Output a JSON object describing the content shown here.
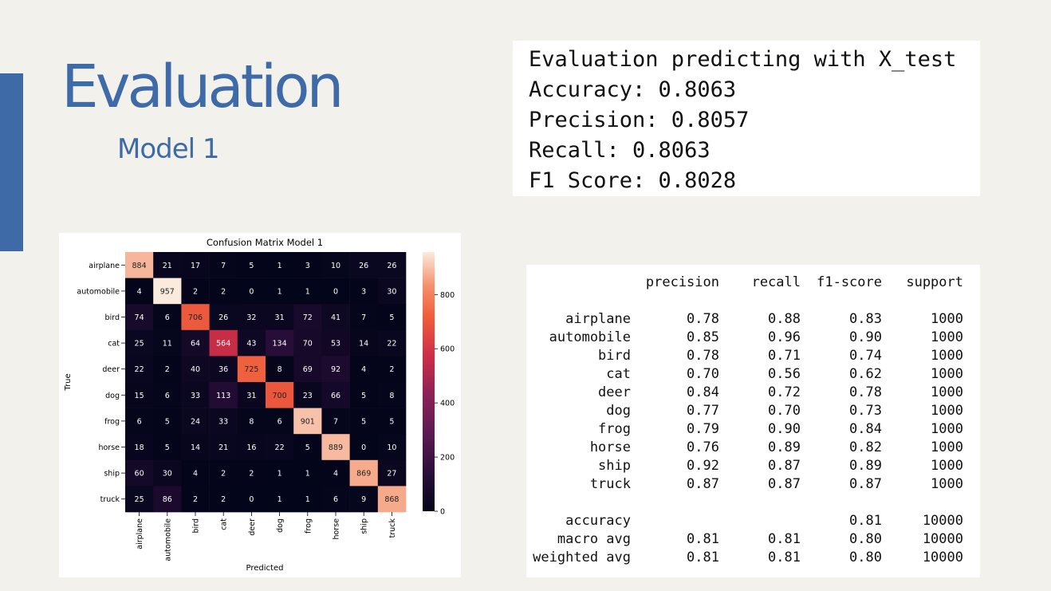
{
  "slide": {
    "title": "Evaluation",
    "subtitle": "Model 1",
    "colors": {
      "accent": "#3e6aa8",
      "background": "#f3f1ec"
    }
  },
  "metrics": {
    "heading": "Evaluation predicting with X_test",
    "lines": [
      "Accuracy: 0.8063",
      "Precision: 0.8057",
      "Recall: 0.8063",
      "F1 Score: 0.8028"
    ]
  },
  "chart_data": {
    "type": "heatmap",
    "title": "Confusion Matrix Model 1",
    "xlabel": "Predicted",
    "ylabel": "True",
    "categories": [
      "airplane",
      "automobile",
      "bird",
      "cat",
      "deer",
      "dog",
      "frog",
      "horse",
      "ship",
      "truck"
    ],
    "matrix": [
      [
        884,
        21,
        17,
        7,
        5,
        1,
        3,
        10,
        26,
        26
      ],
      [
        4,
        957,
        2,
        2,
        0,
        1,
        1,
        0,
        3,
        30
      ],
      [
        74,
        6,
        706,
        26,
        32,
        31,
        72,
        41,
        7,
        5
      ],
      [
        25,
        11,
        64,
        564,
        43,
        134,
        70,
        53,
        14,
        22
      ],
      [
        22,
        2,
        40,
        36,
        725,
        8,
        69,
        92,
        4,
        2
      ],
      [
        15,
        6,
        33,
        113,
        31,
        700,
        23,
        66,
        5,
        8
      ],
      [
        6,
        5,
        24,
        33,
        8,
        6,
        901,
        7,
        5,
        5
      ],
      [
        18,
        5,
        14,
        21,
        16,
        22,
        5,
        889,
        0,
        10
      ],
      [
        60,
        30,
        4,
        2,
        2,
        1,
        1,
        4,
        869,
        27
      ],
      [
        25,
        86,
        2,
        2,
        0,
        1,
        1,
        6,
        9,
        868
      ]
    ],
    "colorbar": {
      "min": 0,
      "max": 957,
      "ticks": [
        "0",
        "200",
        "400",
        "600",
        "800"
      ]
    }
  },
  "report": {
    "headers": [
      "precision",
      "recall",
      "f1-score",
      "support"
    ],
    "rows": [
      [
        "airplane",
        "0.78",
        "0.88",
        "0.83",
        "1000"
      ],
      [
        "automobile",
        "0.85",
        "0.96",
        "0.90",
        "1000"
      ],
      [
        "bird",
        "0.78",
        "0.71",
        "0.74",
        "1000"
      ],
      [
        "cat",
        "0.70",
        "0.56",
        "0.62",
        "1000"
      ],
      [
        "deer",
        "0.84",
        "0.72",
        "0.78",
        "1000"
      ],
      [
        "dog",
        "0.77",
        "0.70",
        "0.73",
        "1000"
      ],
      [
        "frog",
        "0.79",
        "0.90",
        "0.84",
        "1000"
      ],
      [
        "horse",
        "0.76",
        "0.89",
        "0.82",
        "1000"
      ],
      [
        "ship",
        "0.92",
        "0.87",
        "0.89",
        "1000"
      ],
      [
        "truck",
        "0.87",
        "0.87",
        "0.87",
        "1000"
      ]
    ],
    "summary": [
      [
        "accuracy",
        "",
        "",
        "0.81",
        "10000"
      ],
      [
        "macro avg",
        "0.81",
        "0.81",
        "0.80",
        "10000"
      ],
      [
        "weighted avg",
        "0.81",
        "0.81",
        "0.80",
        "10000"
      ]
    ]
  }
}
